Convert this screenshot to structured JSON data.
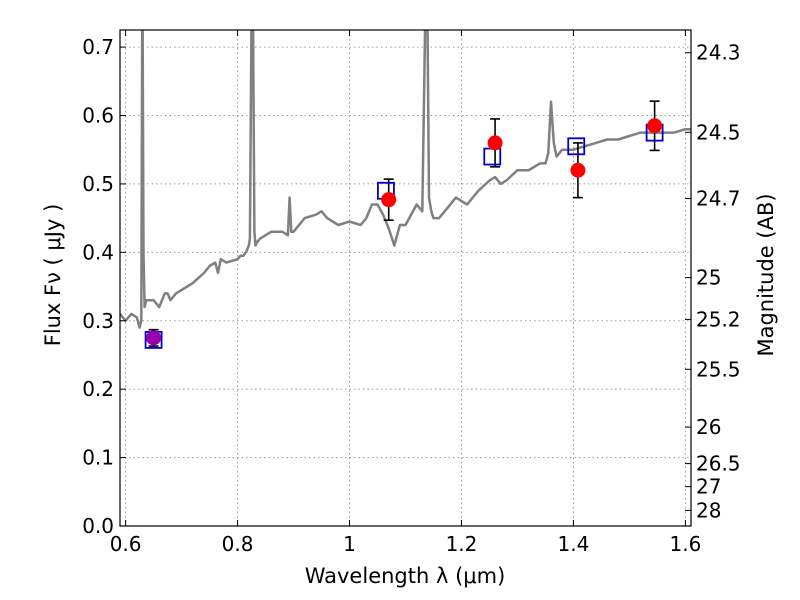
{
  "chart_data": {
    "type": "scatter",
    "xlabel": "Wavelength  λ (μm)",
    "ylabel": "Flux  Fν  ( μJy )",
    "y2label": "Magnitude (AB)",
    "xlim": [
      0.59,
      1.61
    ],
    "ylim": [
      0.0,
      0.725
    ],
    "grid": true,
    "x_ticks": [
      {
        "value": 0.6,
        "label": "0.6"
      },
      {
        "value": 0.8,
        "label": "0.8"
      },
      {
        "value": 1.0,
        "label": "1"
      },
      {
        "value": 1.2,
        "label": "1.2"
      },
      {
        "value": 1.4,
        "label": "1.4"
      },
      {
        "value": 1.6,
        "label": "1.6"
      }
    ],
    "y_ticks": [
      {
        "value": 0.0,
        "label": "0.0"
      },
      {
        "value": 0.1,
        "label": "0.1"
      },
      {
        "value": 0.2,
        "label": "0.2"
      },
      {
        "value": 0.3,
        "label": "0.3"
      },
      {
        "value": 0.4,
        "label": "0.4"
      },
      {
        "value": 0.5,
        "label": "0.5"
      },
      {
        "value": 0.6,
        "label": "0.6"
      },
      {
        "value": 0.7,
        "label": "0.7"
      }
    ],
    "y2_ticks": [
      {
        "value": 24.3,
        "label": "24.3"
      },
      {
        "value": 24.5,
        "label": "24.5"
      },
      {
        "value": 24.7,
        "label": "24.7"
      },
      {
        "value": 25.0,
        "label": "25"
      },
      {
        "value": 25.2,
        "label": "25.2"
      },
      {
        "value": 25.5,
        "label": "25.5"
      },
      {
        "value": 26.0,
        "label": "26"
      },
      {
        "value": 26.5,
        "label": "26.5"
      },
      {
        "value": 27.0,
        "label": "27"
      },
      {
        "value": 28.0,
        "label": "28"
      }
    ],
    "model_spectrum": {
      "color": "#808080",
      "x": [
        0.59,
        0.6,
        0.61,
        0.62,
        0.625,
        0.628,
        0.63,
        0.632,
        0.634,
        0.637,
        0.64,
        0.65,
        0.66,
        0.67,
        0.675,
        0.68,
        0.69,
        0.7,
        0.72,
        0.74,
        0.75,
        0.76,
        0.765,
        0.77,
        0.78,
        0.8,
        0.805,
        0.81,
        0.815,
        0.82,
        0.822,
        0.825,
        0.827,
        0.83,
        0.832,
        0.835,
        0.84,
        0.86,
        0.88,
        0.89,
        0.893,
        0.896,
        0.9,
        0.92,
        0.94,
        0.95,
        0.96,
        0.98,
        1.0,
        1.02,
        1.03,
        1.04,
        1.05,
        1.06,
        1.07,
        1.08,
        1.09,
        1.1,
        1.12,
        1.13,
        1.135,
        1.138,
        1.142,
        1.146,
        1.15,
        1.16,
        1.17,
        1.19,
        1.21,
        1.23,
        1.25,
        1.26,
        1.27,
        1.28,
        1.3,
        1.32,
        1.34,
        1.35,
        1.355,
        1.36,
        1.365,
        1.37,
        1.38,
        1.4,
        1.42,
        1.44,
        1.46,
        1.48,
        1.5,
        1.52,
        1.54,
        1.56,
        1.58,
        1.6,
        1.61
      ],
      "y": [
        0.31,
        0.3,
        0.31,
        0.305,
        0.29,
        0.3,
        0.82,
        0.4,
        0.32,
        0.33,
        0.33,
        0.33,
        0.32,
        0.34,
        0.34,
        0.33,
        0.34,
        0.345,
        0.355,
        0.37,
        0.38,
        0.385,
        0.37,
        0.39,
        0.385,
        0.39,
        0.395,
        0.395,
        0.4,
        0.41,
        0.42,
        0.76,
        0.82,
        0.43,
        0.41,
        0.415,
        0.42,
        0.43,
        0.43,
        0.425,
        0.48,
        0.43,
        0.43,
        0.45,
        0.455,
        0.46,
        0.45,
        0.44,
        0.445,
        0.44,
        0.45,
        0.47,
        0.47,
        0.455,
        0.435,
        0.41,
        0.44,
        0.44,
        0.47,
        0.46,
        0.73,
        0.85,
        0.48,
        0.46,
        0.45,
        0.45,
        0.46,
        0.48,
        0.47,
        0.49,
        0.505,
        0.51,
        0.5,
        0.505,
        0.52,
        0.52,
        0.53,
        0.53,
        0.545,
        0.62,
        0.56,
        0.54,
        0.55,
        0.55,
        0.555,
        0.56,
        0.565,
        0.565,
        0.57,
        0.575,
        0.575,
        0.575,
        0.575,
        0.58,
        0.58
      ]
    },
    "series": [
      {
        "marker": "open-square",
        "color": "#0000cc",
        "x": [
          0.65,
          1.065,
          1.255,
          1.405,
          1.545
        ],
        "y": [
          0.272,
          0.49,
          0.54,
          0.555,
          0.575
        ]
      },
      {
        "marker": "filled-circle",
        "color": "#ff0000",
        "x": [
          0.65,
          1.07,
          1.26,
          1.408,
          1.545
        ],
        "y": [
          0.275,
          0.477,
          0.56,
          0.52,
          0.585
        ],
        "err": [
          0.012,
          0.03,
          0.035,
          0.04,
          0.036
        ]
      }
    ],
    "overlap_color": "#9900aa"
  }
}
